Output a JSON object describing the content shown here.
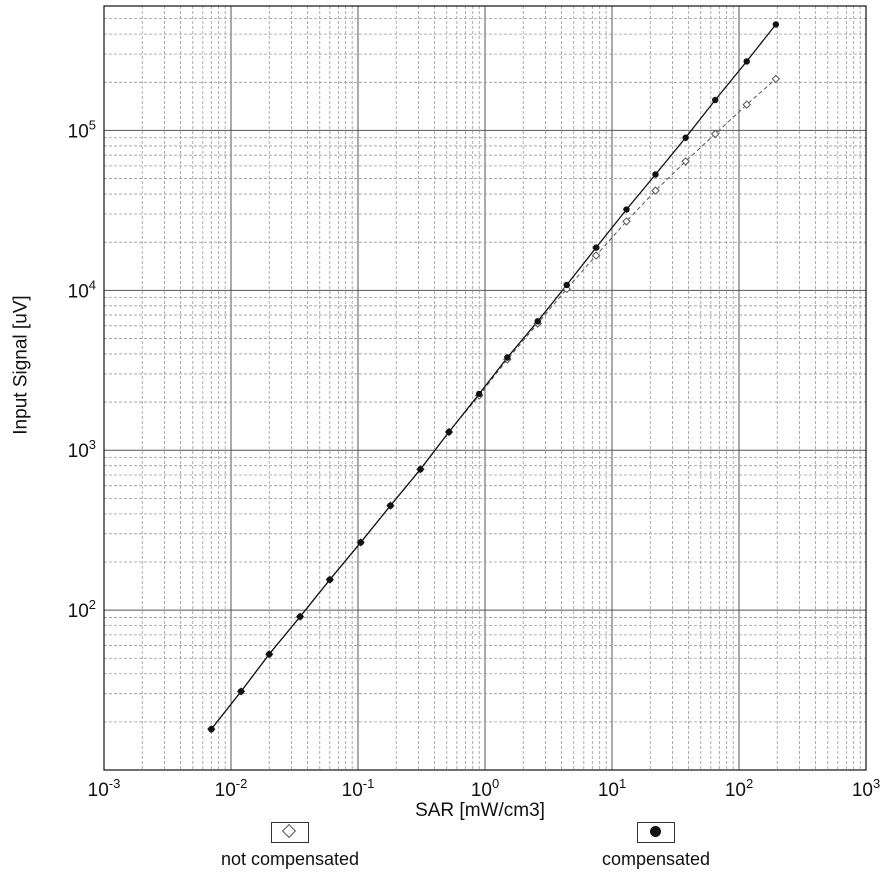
{
  "chart_data": {
    "type": "line",
    "xlabel": "SAR [mW/cm3]",
    "ylabel": "Input Signal [uV]",
    "xscale": "log",
    "yscale": "log",
    "xlim": [
      0.001,
      1000
    ],
    "ylim": [
      10,
      600000
    ],
    "grid": true,
    "x_ticks": [
      {
        "base": "10",
        "exp": "-3"
      },
      {
        "base": "10",
        "exp": "-2"
      },
      {
        "base": "10",
        "exp": "-1"
      },
      {
        "base": "10",
        "exp": "0"
      },
      {
        "base": "10",
        "exp": "1"
      },
      {
        "base": "10",
        "exp": "2"
      },
      {
        "base": "10",
        "exp": "3"
      }
    ],
    "y_ticks": [
      {
        "base": "10",
        "exp": "2"
      },
      {
        "base": "10",
        "exp": "3"
      },
      {
        "base": "10",
        "exp": "4"
      },
      {
        "base": "10",
        "exp": "5"
      }
    ],
    "series": [
      {
        "name": "not compensated",
        "marker": "diamond",
        "color": "#555555",
        "line": "dashed",
        "points": [
          [
            0.007,
            18
          ],
          [
            0.012,
            31
          ],
          [
            0.02,
            53
          ],
          [
            0.035,
            91
          ],
          [
            0.06,
            155
          ],
          [
            0.105,
            265
          ],
          [
            0.18,
            450
          ],
          [
            0.31,
            760
          ],
          [
            0.52,
            1300
          ],
          [
            0.9,
            2200
          ],
          [
            1.5,
            3700
          ],
          [
            2.6,
            6200
          ],
          [
            4.4,
            10200
          ],
          [
            7.5,
            16500
          ],
          [
            13,
            27000
          ],
          [
            22,
            42000
          ],
          [
            38,
            64000
          ],
          [
            65,
            95000
          ],
          [
            115,
            145000
          ],
          [
            195,
            210000
          ]
        ]
      },
      {
        "name": "compensated",
        "marker": "circle",
        "color": "#111111",
        "line": "solid",
        "points": [
          [
            0.007,
            18
          ],
          [
            0.012,
            31
          ],
          [
            0.02,
            53
          ],
          [
            0.035,
            91
          ],
          [
            0.06,
            155
          ],
          [
            0.105,
            265
          ],
          [
            0.18,
            450
          ],
          [
            0.31,
            760
          ],
          [
            0.52,
            1300
          ],
          [
            0.9,
            2250
          ],
          [
            1.5,
            3800
          ],
          [
            2.6,
            6400
          ],
          [
            4.4,
            10800
          ],
          [
            7.5,
            18500
          ],
          [
            13,
            32000
          ],
          [
            22,
            53000
          ],
          [
            38,
            90000
          ],
          [
            65,
            155000
          ],
          [
            115,
            270000
          ],
          [
            195,
            460000
          ]
        ]
      }
    ]
  },
  "legend": {
    "not_compensated": "not compensated",
    "compensated": "compensated"
  }
}
